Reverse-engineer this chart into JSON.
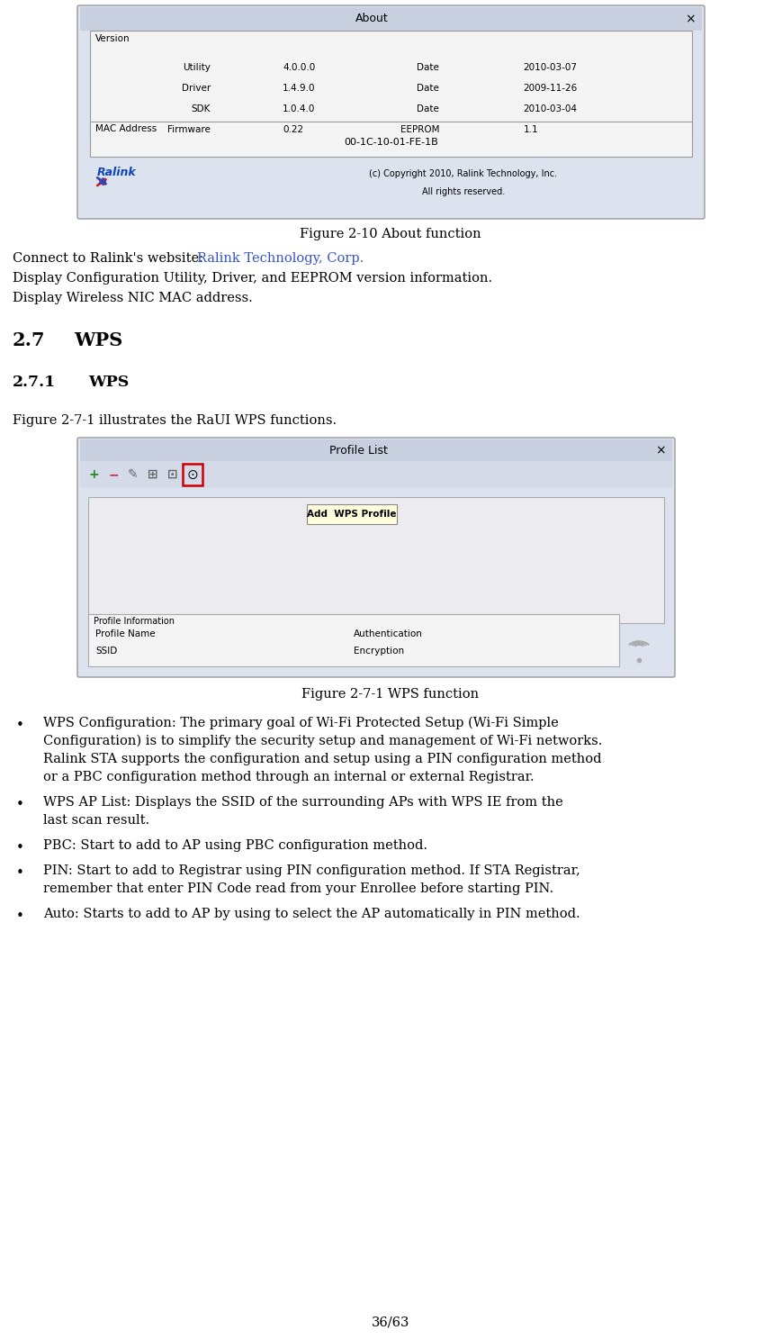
{
  "bg_color": "#ffffff",
  "fig_width": 8.69,
  "fig_height": 14.87,
  "fig_caption1": "Figure 2-10 About function",
  "fig_caption2": "Figure 2-7-1 WPS function",
  "line1_prefix": "Connect to Ralink's website: ",
  "link_text": "Ralink Technology, Corp.",
  "line2": "Display Configuration Utility, Driver, and EEPROM version information.",
  "line3": "Display Wireless NIC MAC address.",
  "heading1": "2.7",
  "heading1b": "WPS",
  "heading2": "2.7.1",
  "heading2b": "WPS",
  "para1": "Figure 2-7-1 illustrates the RaUI WPS functions.",
  "bullet1_lines": [
    "WPS Configuration: The primary goal of Wi-Fi Protected Setup (Wi-Fi Simple",
    "Configuration) is to simplify the security setup and management of Wi-Fi networks.",
    "Ralink STA supports the configuration and setup using a PIN configuration method",
    "or a PBC configuration method through an internal or external Registrar."
  ],
  "bullet2_lines": [
    "WPS AP List: Displays the SSID of the surrounding APs with WPS IE from the",
    "last scan result."
  ],
  "bullet3_lines": [
    "PBC: Start to add to AP using PBC configuration method."
  ],
  "bullet4_lines": [
    "PIN: Start to add to Registrar using PIN configuration method. If STA Registrar,",
    "remember that enter PIN Code read from your Enrollee before starting PIN."
  ],
  "bullet5_lines": [
    "Auto: Starts to add to AP by using to select the AP automatically in PIN method."
  ],
  "footer": "36/63",
  "ver_rows": [
    [
      "Utility",
      "4.0.0.0",
      "Date",
      "2010-03-07"
    ],
    [
      "Driver",
      "1.4.9.0",
      "Date",
      "2009-11-26"
    ],
    [
      "SDK",
      "1.0.4.0",
      "Date",
      "2010-03-04"
    ],
    [
      "Firmware",
      "0.22",
      "EEPROM",
      "1.1"
    ]
  ],
  "mac_addr": "00-1C-10-01-FE-1B",
  "copyright1": "(c) Copyright 2010, Ralink Technology, Inc.",
  "copyright2": "All rights reserved."
}
